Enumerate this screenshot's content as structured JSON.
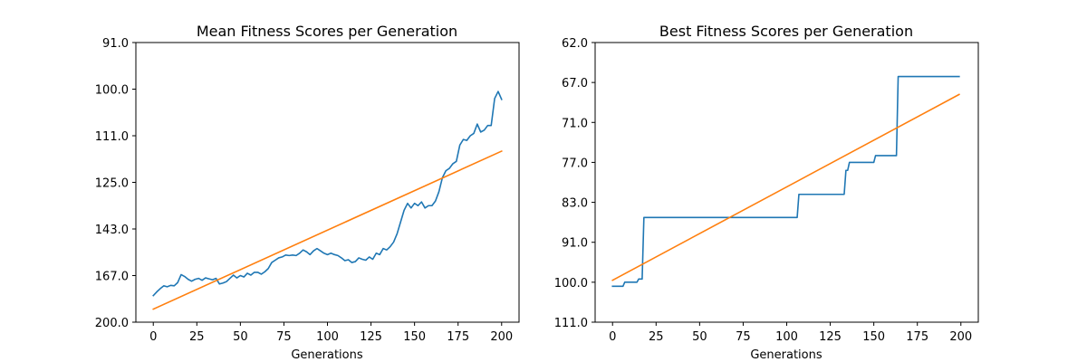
{
  "colors": {
    "series_line": "#1f77b4",
    "trend_line": "#ff7f0e",
    "axes": "#000000",
    "background": "#ffffff"
  },
  "chart_data": [
    {
      "type": "line",
      "title": "Mean Fitness Scores per Generation",
      "xlabel": "Generations",
      "ylabel": "",
      "xlim": [
        -10,
        210
      ],
      "xticks": [
        0,
        25,
        50,
        75,
        100,
        125,
        150,
        175,
        200
      ],
      "xtick_labels": [
        "0",
        "25",
        "50",
        "75",
        "100",
        "125",
        "150",
        "175",
        "200"
      ],
      "ytick_labels": [
        "91.0",
        "100.0",
        "111.0",
        "125.0",
        "143.0",
        "167.0",
        "200.0"
      ],
      "y_axis_note": "categorical-looking tick labels, increasing downward; values below are expressed in tick-index units (0 = top tick 91.0, 6 = bottom tick 200.0)",
      "ylim": [
        0,
        6
      ],
      "grid": false,
      "series": [
        {
          "color": "#1f77b4",
          "points": [
            [
              0,
              5.43
            ],
            [
              2,
              5.35
            ],
            [
              4,
              5.28
            ],
            [
              6,
              5.22
            ],
            [
              8,
              5.24
            ],
            [
              10,
              5.21
            ],
            [
              12,
              5.22
            ],
            [
              14,
              5.15
            ],
            [
              16,
              4.98
            ],
            [
              18,
              5.02
            ],
            [
              20,
              5.08
            ],
            [
              22,
              5.12
            ],
            [
              24,
              5.08
            ],
            [
              26,
              5.06
            ],
            [
              28,
              5.1
            ],
            [
              30,
              5.05
            ],
            [
              32,
              5.07
            ],
            [
              34,
              5.09
            ],
            [
              36,
              5.06
            ],
            [
              38,
              5.18
            ],
            [
              40,
              5.16
            ],
            [
              42,
              5.13
            ],
            [
              44,
              5.06
            ],
            [
              46,
              4.99
            ],
            [
              48,
              5.05
            ],
            [
              50,
              5.0
            ],
            [
              52,
              5.03
            ],
            [
              54,
              4.95
            ],
            [
              56,
              4.99
            ],
            [
              58,
              4.93
            ],
            [
              60,
              4.93
            ],
            [
              62,
              4.97
            ],
            [
              64,
              4.92
            ],
            [
              66,
              4.85
            ],
            [
              68,
              4.72
            ],
            [
              70,
              4.67
            ],
            [
              72,
              4.62
            ],
            [
              74,
              4.6
            ],
            [
              76,
              4.56
            ],
            [
              78,
              4.57
            ],
            [
              80,
              4.56
            ],
            [
              82,
              4.57
            ],
            [
              84,
              4.52
            ],
            [
              86,
              4.45
            ],
            [
              88,
              4.49
            ],
            [
              90,
              4.55
            ],
            [
              92,
              4.47
            ],
            [
              94,
              4.42
            ],
            [
              96,
              4.47
            ],
            [
              98,
              4.52
            ],
            [
              100,
              4.55
            ],
            [
              102,
              4.52
            ],
            [
              104,
              4.55
            ],
            [
              106,
              4.57
            ],
            [
              108,
              4.62
            ],
            [
              110,
              4.68
            ],
            [
              112,
              4.66
            ],
            [
              114,
              4.72
            ],
            [
              116,
              4.7
            ],
            [
              118,
              4.62
            ],
            [
              120,
              4.65
            ],
            [
              122,
              4.67
            ],
            [
              124,
              4.6
            ],
            [
              126,
              4.65
            ],
            [
              128,
              4.52
            ],
            [
              130,
              4.55
            ],
            [
              132,
              4.42
            ],
            [
              134,
              4.45
            ],
            [
              136,
              4.38
            ],
            [
              138,
              4.28
            ],
            [
              140,
              4.1
            ],
            [
              142,
              3.85
            ],
            [
              144,
              3.6
            ],
            [
              146,
              3.45
            ],
            [
              148,
              3.55
            ],
            [
              150,
              3.45
            ],
            [
              152,
              3.5
            ],
            [
              154,
              3.42
            ],
            [
              156,
              3.55
            ],
            [
              158,
              3.5
            ],
            [
              160,
              3.5
            ],
            [
              162,
              3.4
            ],
            [
              164,
              3.2
            ],
            [
              166,
              2.9
            ],
            [
              168,
              2.75
            ],
            [
              170,
              2.7
            ],
            [
              172,
              2.6
            ],
            [
              174,
              2.55
            ],
            [
              176,
              2.2
            ],
            [
              178,
              2.08
            ],
            [
              180,
              2.1
            ],
            [
              182,
              2.0
            ],
            [
              184,
              1.95
            ],
            [
              186,
              1.75
            ],
            [
              188,
              1.92
            ],
            [
              190,
              1.88
            ],
            [
              192,
              1.78
            ],
            [
              194,
              1.78
            ],
            [
              196,
              1.2
            ],
            [
              198,
              1.05
            ],
            [
              200,
              1.22
            ]
          ]
        },
        {
          "color": "#ff7f0e",
          "points": [
            [
              0,
              5.72
            ],
            [
              200,
              2.33
            ]
          ]
        }
      ]
    },
    {
      "type": "line",
      "title": "Best Fitness Scores per Generation",
      "xlabel": "Generations",
      "ylabel": "",
      "xlim": [
        -10,
        210
      ],
      "xticks": [
        0,
        25,
        50,
        75,
        100,
        125,
        150,
        175,
        200
      ],
      "xtick_labels": [
        "0",
        "25",
        "50",
        "75",
        "100",
        "125",
        "150",
        "175",
        "200"
      ],
      "ytick_labels": [
        "62.0",
        "67.0",
        "71.0",
        "77.0",
        "83.0",
        "91.0",
        "100.0",
        "111.0"
      ],
      "y_axis_note": "categorical-looking tick labels, increasing downward; values below are expressed in tick-index units (0 = top tick 62.0, 7 = bottom tick 111.0)",
      "ylim": [
        0,
        7
      ],
      "grid": false,
      "series": [
        {
          "color": "#1f77b4",
          "step": true,
          "points": [
            [
              0,
              6.1
            ],
            [
              6,
              6.1
            ],
            [
              7,
              6.0
            ],
            [
              14,
              6.0
            ],
            [
              15,
              5.92
            ],
            [
              17,
              5.92
            ],
            [
              18,
              4.38
            ],
            [
              106,
              4.38
            ],
            [
              107,
              3.8
            ],
            [
              133,
              3.8
            ],
            [
              134,
              3.2
            ],
            [
              135,
              3.2
            ],
            [
              136,
              3.0
            ],
            [
              150,
              3.0
            ],
            [
              151,
              2.83
            ],
            [
              163,
              2.83
            ],
            [
              164,
              0.85
            ],
            [
              199,
              0.85
            ]
          ]
        },
        {
          "color": "#ff7f0e",
          "points": [
            [
              0,
              5.95
            ],
            [
              199,
              1.3
            ]
          ]
        }
      ]
    }
  ]
}
